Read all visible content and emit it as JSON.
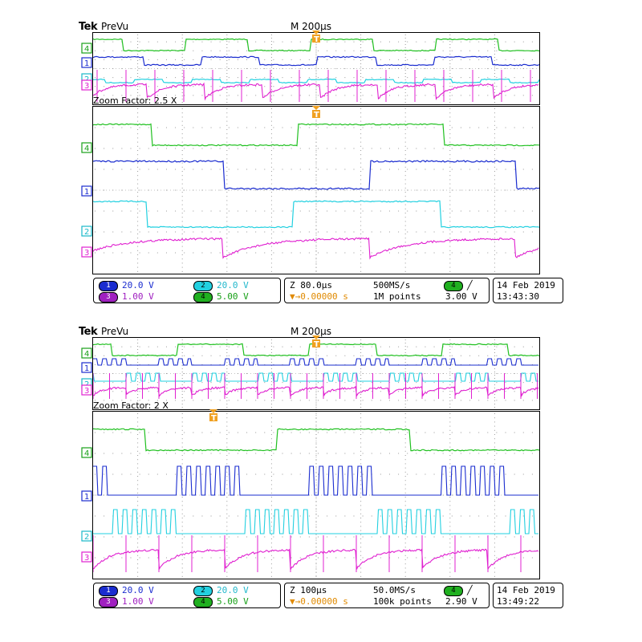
{
  "colors": {
    "ch1": "#1a2ccf",
    "ch2": "#22d0e0",
    "ch3": "#e020d0",
    "ch4": "#20c020",
    "trigger": "#f0a020"
  },
  "icons": {
    "trigger_marker": "T-down-arrow-marker",
    "edge_rising": "rising-edge-icon"
  },
  "screens": [
    {
      "brand": "Tek",
      "mode": "PreVu",
      "timebase": "M 200µs",
      "zoom_label": "Zoom Factor: 2.5 X",
      "markers": {
        "ch4": "4",
        "ch1": "1",
        "ch2": "2",
        "ch3": "3",
        "trigger": "T"
      },
      "status": {
        "ch1_num": "1",
        "ch1_scale": "20.0 V",
        "ch2_num": "2",
        "ch2_scale": "20.0 V",
        "ch3_num": "3",
        "ch3_scale": "1.00 V",
        "ch4_num": "4",
        "ch4_scale": "5.00 V",
        "zoom_time": "Z 80.0µs",
        "sample_rate": "500MS/s",
        "trig_pos": "0.00000 s",
        "record_len": "1M points",
        "trig_src": "4",
        "trig_level": "3.00 V",
        "date": "14 Feb 2019",
        "time": "13:43:30"
      }
    },
    {
      "brand": "Tek",
      "mode": "PreVu",
      "timebase": "M 200µs",
      "zoom_label": "Zoom Factor: 2 X",
      "markers": {
        "ch4": "4",
        "ch1": "1",
        "ch2": "2",
        "ch3": "3",
        "trigger": "T"
      },
      "status": {
        "ch1_num": "1",
        "ch1_scale": "20.0 V",
        "ch2_num": "2",
        "ch2_scale": "20.0 V",
        "ch3_num": "3",
        "ch3_scale": "1.00 V",
        "ch4_num": "4",
        "ch4_scale": "5.00 V",
        "zoom_time": "Z 100µs",
        "sample_rate": "50.0MS/s",
        "trig_pos": "0.00000 s",
        "record_len": "100k points",
        "trig_src": "4",
        "trig_level": "2.90 V",
        "date": "14 Feb 2019",
        "time": "13:49:22"
      }
    }
  ]
}
